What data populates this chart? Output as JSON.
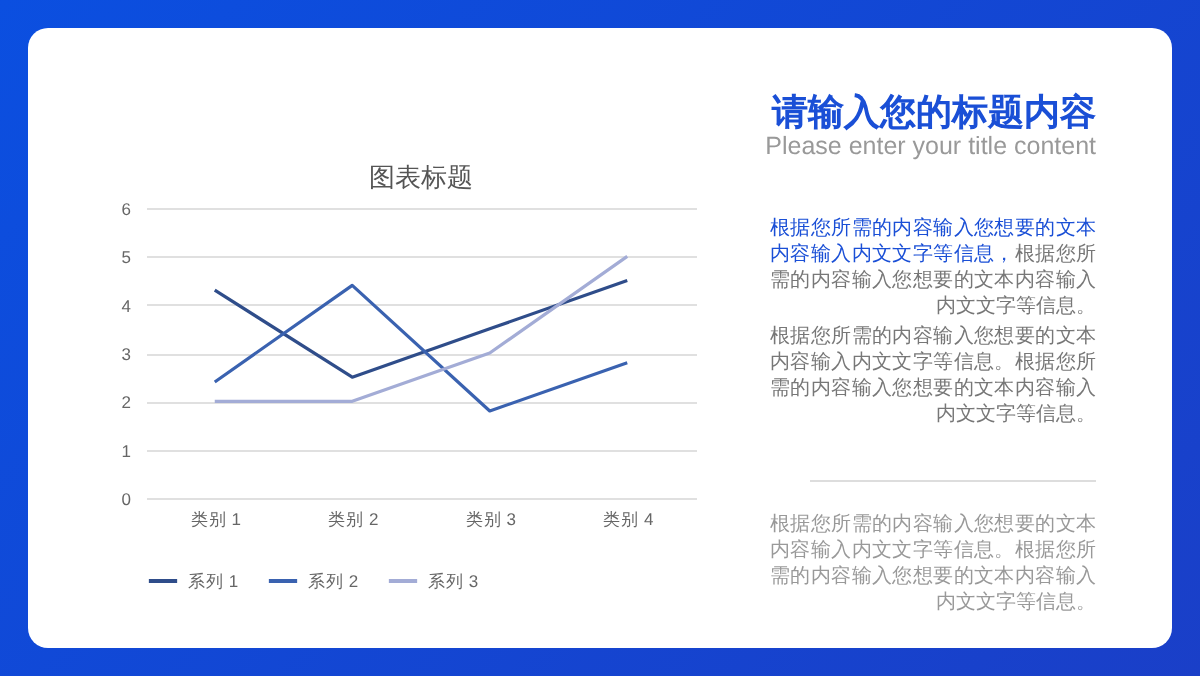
{
  "chart_data": {
    "type": "line",
    "title": "图表标题",
    "categories": [
      "类别 1",
      "类别 2",
      "类别 3",
      "类别 4"
    ],
    "series": [
      {
        "name": "系列 1",
        "color": "#2f4d8a",
        "values": [
          4.3,
          2.5,
          3.5,
          4.5
        ]
      },
      {
        "name": "系列 2",
        "color": "#3a62b0",
        "values": [
          2.4,
          4.4,
          1.8,
          2.8
        ]
      },
      {
        "name": "系列 3",
        "color": "#a3acd6",
        "values": [
          2,
          2,
          3,
          5
        ]
      }
    ],
    "ylim": [
      0,
      6
    ],
    "yticks": [
      0,
      1,
      2,
      3,
      4,
      5,
      6
    ],
    "grid": "y",
    "legend": "bottom",
    "line_style": "solid",
    "marker": "none",
    "annotations": [
      "请输入您的标题内容",
      "Please enter your title content",
      "根据您所需的内容输入您想要的文本内容输入内文文字等信息，",
      "根据您所需的内容输入您想要的文本内容输入内文文字等信息。",
      "根据您所需的内容输入您想要的文本内容输入内文文字等信息。根据您所需的内容输入您想要的文本内容输入内文文字等信息。",
      "根据您所需的内容输入您想要的文本内容输入内文文字等信息。根据您所需的内容输入您想要的文本内容输入内文文字等信息。"
    ]
  }
}
